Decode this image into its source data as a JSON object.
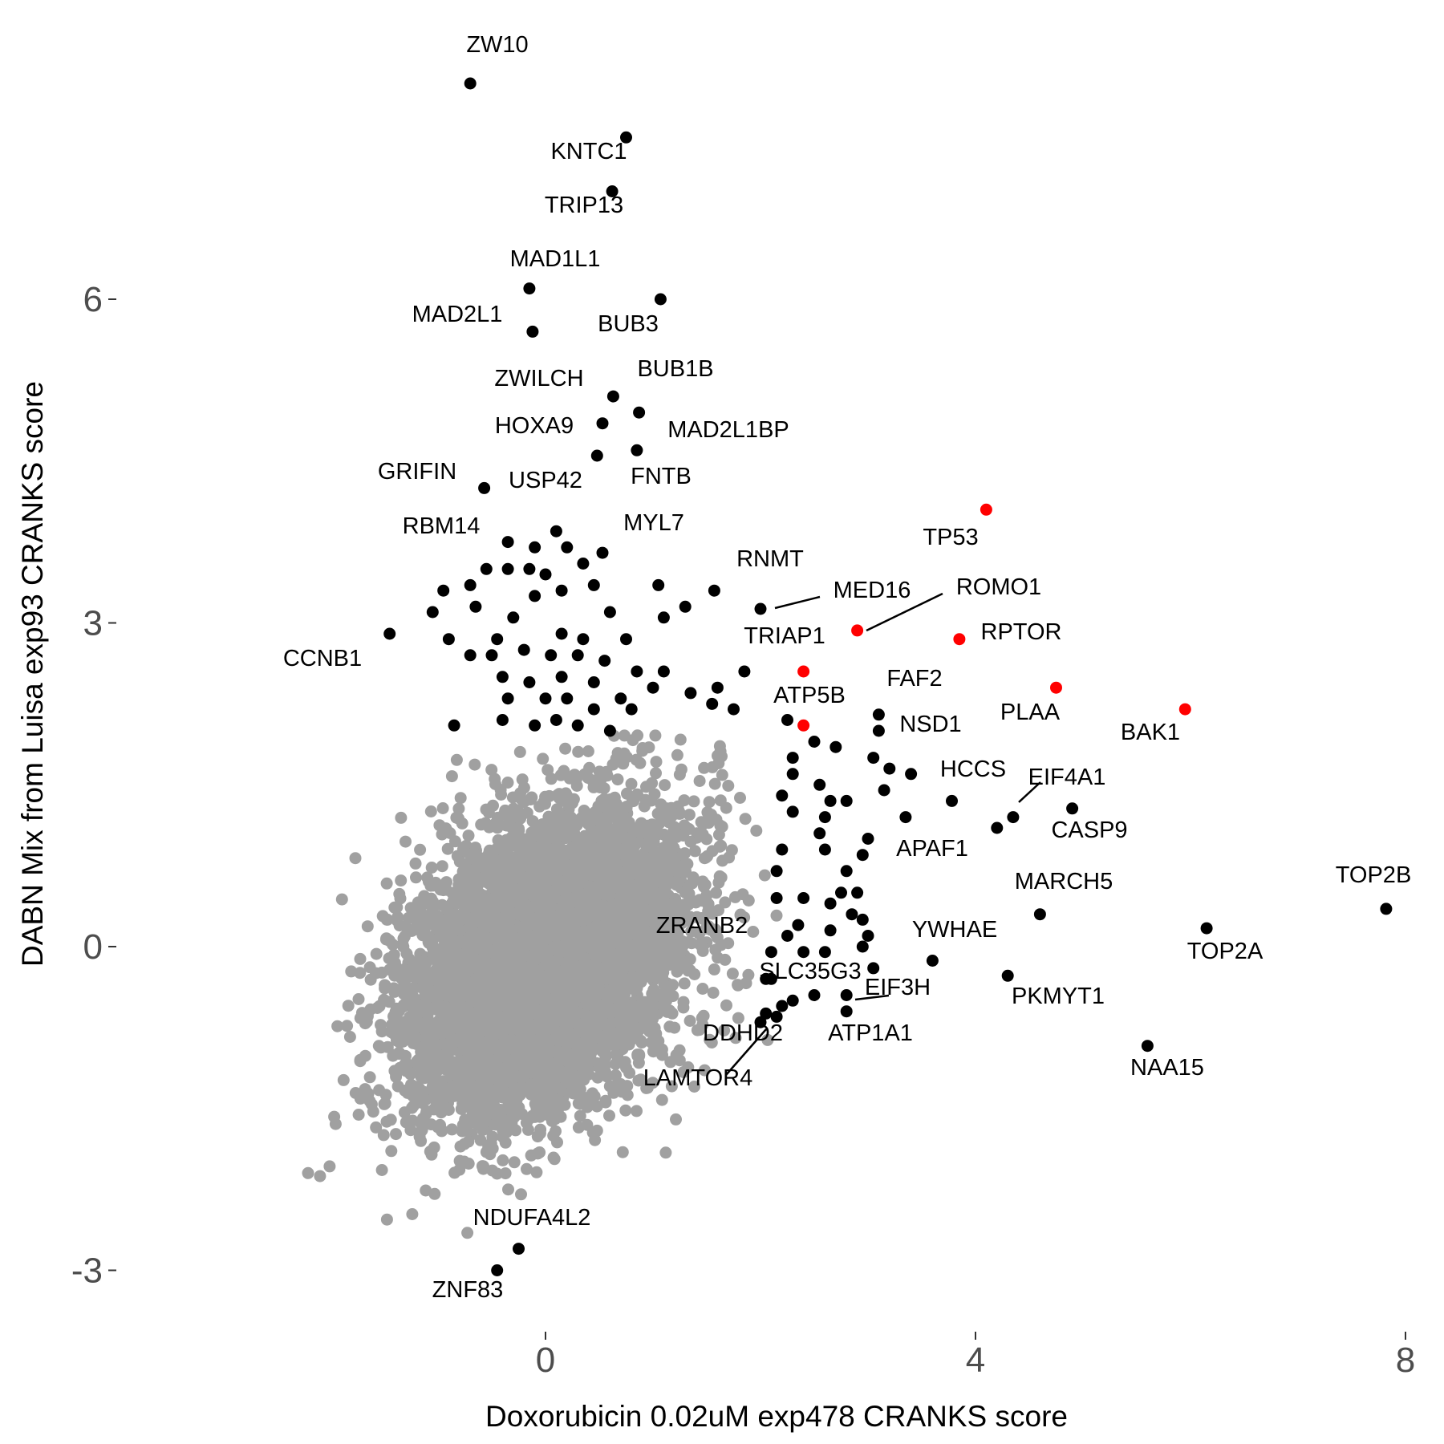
{
  "chart_data": {
    "type": "scatter",
    "title": "",
    "xlabel": "Doxorubicin 0.02uM exp478 CRANKS score",
    "ylabel": "DABN Mix from Luisa exp93 CRANKS score",
    "xlim": [
      -3.5,
      8.1
    ],
    "ylim": [
      -3.5,
      8.2
    ],
    "x_ticks": [
      0,
      4,
      8
    ],
    "x_tick_labels": [
      "0",
      "4",
      "8"
    ],
    "y_ticks": [
      -3,
      0,
      3,
      6
    ],
    "y_tick_labels": [
      "-3",
      "0",
      "3",
      "6"
    ],
    "grid": false,
    "legend": "none",
    "colors": {
      "background": "#a0a0a0",
      "significant": "#000000",
      "highlight": "#ff0000"
    },
    "background_cloud": {
      "description_count": 6000,
      "x_center": 0.0,
      "y_center": -0.15,
      "x_sd": 0.65,
      "y_sd": 0.7,
      "correlation": 0.35
    },
    "labeled_points": [
      {
        "gene": "ZW10",
        "x": -0.7,
        "y": 8.0,
        "group": "significant"
      },
      {
        "gene": "KNTC1",
        "x": 0.75,
        "y": 7.5,
        "group": "significant"
      },
      {
        "gene": "TRIP13",
        "x": 0.62,
        "y": 7.0,
        "group": "significant"
      },
      {
        "gene": "MAD1L1",
        "x": -0.15,
        "y": 6.1,
        "group": "significant"
      },
      {
        "gene": "BUB3",
        "x": 1.07,
        "y": 6.0,
        "group": "significant"
      },
      {
        "gene": "MAD2L1",
        "x": -0.12,
        "y": 5.7,
        "group": "significant"
      },
      {
        "gene": "BUB1B",
        "x": 0.63,
        "y": 5.1,
        "group": "significant"
      },
      {
        "gene": "ZWILCH",
        "x": 0.53,
        "y": 4.85,
        "group": "significant"
      },
      {
        "gene": "MAD2L1BP",
        "x": 0.87,
        "y": 4.95,
        "group": "significant"
      },
      {
        "gene": "HOXA9",
        "x": 0.48,
        "y": 4.55,
        "group": "significant"
      },
      {
        "gene": "FNTB",
        "x": 0.85,
        "y": 4.6,
        "group": "significant"
      },
      {
        "gene": "USP42",
        "x": -0.57,
        "y": 4.25,
        "group": "significant"
      },
      {
        "gene": "MYL7",
        "x": 0.53,
        "y": 3.65,
        "group": "significant"
      },
      {
        "gene": "RBM14",
        "x": -0.35,
        "y": 3.75,
        "group": "significant"
      },
      {
        "gene": "RNMT",
        "x": 1.57,
        "y": 3.3,
        "group": "significant"
      },
      {
        "gene": "MED16",
        "x": 2.0,
        "y": 3.13,
        "group": "significant"
      },
      {
        "gene": "ROMO1",
        "x": 2.9,
        "y": 2.93,
        "group": "highlight"
      },
      {
        "gene": "TP53",
        "x": 4.1,
        "y": 4.05,
        "group": "highlight"
      },
      {
        "gene": "RPTOR",
        "x": 3.85,
        "y": 2.85,
        "group": "highlight"
      },
      {
        "gene": "CCNB1",
        "x": -1.45,
        "y": 2.9,
        "group": "significant"
      },
      {
        "gene": "TRIAP1",
        "x": 2.4,
        "y": 2.55,
        "group": "highlight"
      },
      {
        "gene": "ATP5B",
        "x": 2.4,
        "y": 2.05,
        "group": "highlight"
      },
      {
        "gene": "PLAA",
        "x": 4.75,
        "y": 2.4,
        "group": "highlight"
      },
      {
        "gene": "BAK1",
        "x": 5.95,
        "y": 2.2,
        "group": "highlight"
      },
      {
        "gene": "FAF2",
        "x": 3.1,
        "y": 2.15,
        "group": "significant"
      },
      {
        "gene": "NSD1",
        "x": 3.1,
        "y": 2.0,
        "group": "significant"
      },
      {
        "gene": "HCCS",
        "x": 3.78,
        "y": 1.35,
        "group": "significant"
      },
      {
        "gene": "EIF4A1",
        "x": 4.35,
        "y": 1.2,
        "group": "significant"
      },
      {
        "gene": "CASP9",
        "x": 4.9,
        "y": 1.28,
        "group": "significant"
      },
      {
        "gene": "APAF1",
        "x": 4.2,
        "y": 1.1,
        "group": "significant"
      },
      {
        "gene": "TOP2B",
        "x": 7.82,
        "y": 0.35,
        "group": "significant"
      },
      {
        "gene": "MARCH5",
        "x": 4.6,
        "y": 0.3,
        "group": "significant"
      },
      {
        "gene": "TOP2A",
        "x": 6.15,
        "y": 0.17,
        "group": "significant"
      },
      {
        "gene": "YWHAE",
        "x": 3.6,
        "y": -0.13,
        "group": "significant"
      },
      {
        "gene": "ZRANB2",
        "x": 2.1,
        "y": -0.05,
        "group": "significant"
      },
      {
        "gene": "SLC35G3",
        "x": 2.1,
        "y": -0.3,
        "group": "significant"
      },
      {
        "gene": "EIF3H",
        "x": 2.8,
        "y": -0.45,
        "group": "significant"
      },
      {
        "gene": "PKMYT1",
        "x": 4.3,
        "y": -0.27,
        "group": "significant"
      },
      {
        "gene": "ATP1A1",
        "x": 2.8,
        "y": -0.6,
        "group": "significant"
      },
      {
        "gene": "DDHD2",
        "x": 2.05,
        "y": -0.62,
        "group": "significant"
      },
      {
        "gene": "LAMTOR4",
        "x": 2.2,
        "y": -0.55,
        "group": "significant"
      },
      {
        "gene": "NAA15",
        "x": 5.6,
        "y": -0.92,
        "group": "significant"
      },
      {
        "gene": "NDUFA4L2",
        "x": -0.25,
        "y": -2.8,
        "group": "significant"
      },
      {
        "gene": "ZNF83",
        "x": -0.45,
        "y": -3.0,
        "group": "significant"
      }
    ],
    "unlabeled_significant_points": [
      [
        -0.1,
        3.7
      ],
      [
        0.1,
        3.85
      ],
      [
        0.2,
        3.7
      ],
      [
        0.35,
        3.55
      ],
      [
        -0.55,
        3.5
      ],
      [
        -0.35,
        3.5
      ],
      [
        -0.15,
        3.5
      ],
      [
        0.0,
        3.45
      ],
      [
        -0.95,
        3.3
      ],
      [
        -0.7,
        3.35
      ],
      [
        -0.1,
        3.25
      ],
      [
        0.15,
        3.3
      ],
      [
        0.45,
        3.35
      ],
      [
        1.05,
        3.35
      ],
      [
        1.3,
        3.15
      ],
      [
        -1.05,
        3.1
      ],
      [
        -0.65,
        3.15
      ],
      [
        -0.3,
        3.05
      ],
      [
        0.6,
        3.1
      ],
      [
        1.1,
        3.05
      ],
      [
        -0.9,
        2.85
      ],
      [
        -0.45,
        2.85
      ],
      [
        0.15,
        2.9
      ],
      [
        0.35,
        2.85
      ],
      [
        0.75,
        2.85
      ],
      [
        -0.7,
        2.7
      ],
      [
        -0.5,
        2.7
      ],
      [
        -0.2,
        2.75
      ],
      [
        0.05,
        2.7
      ],
      [
        0.3,
        2.7
      ],
      [
        0.55,
        2.65
      ],
      [
        0.85,
        2.55
      ],
      [
        1.1,
        2.55
      ],
      [
        -0.4,
        2.5
      ],
      [
        -0.15,
        2.45
      ],
      [
        0.15,
        2.5
      ],
      [
        0.45,
        2.45
      ],
      [
        0.7,
        2.3
      ],
      [
        1.0,
        2.4
      ],
      [
        1.35,
        2.35
      ],
      [
        1.6,
        2.4
      ],
      [
        1.85,
        2.55
      ],
      [
        -0.35,
        2.3
      ],
      [
        0.0,
        2.3
      ],
      [
        0.2,
        2.3
      ],
      [
        0.45,
        2.2
      ],
      [
        0.8,
        2.2
      ],
      [
        1.55,
        2.25
      ],
      [
        1.75,
        2.2
      ],
      [
        -0.85,
        2.05
      ],
      [
        -0.4,
        2.1
      ],
      [
        -0.1,
        2.05
      ],
      [
        0.1,
        2.1
      ],
      [
        0.3,
        2.05
      ],
      [
        0.6,
        2.0
      ],
      [
        2.25,
        2.1
      ],
      [
        2.5,
        1.9
      ],
      [
        2.7,
        1.85
      ],
      [
        2.3,
        1.75
      ],
      [
        3.05,
        1.75
      ],
      [
        3.2,
        1.65
      ],
      [
        2.3,
        1.6
      ],
      [
        2.55,
        1.5
      ],
      [
        3.4,
        1.6
      ],
      [
        2.2,
        1.4
      ],
      [
        2.65,
        1.35
      ],
      [
        2.8,
        1.35
      ],
      [
        3.15,
        1.45
      ],
      [
        2.3,
        1.25
      ],
      [
        2.6,
        1.2
      ],
      [
        3.35,
        1.2
      ],
      [
        2.55,
        1.05
      ],
      [
        3.0,
        1.0
      ],
      [
        2.2,
        0.9
      ],
      [
        2.6,
        0.9
      ],
      [
        2.95,
        0.85
      ],
      [
        2.15,
        0.7
      ],
      [
        2.8,
        0.7
      ],
      [
        2.15,
        0.45
      ],
      [
        2.4,
        0.45
      ],
      [
        2.65,
        0.4
      ],
      [
        2.75,
        0.5
      ],
      [
        2.9,
        0.5
      ],
      [
        2.35,
        0.2
      ],
      [
        2.85,
        0.3
      ],
      [
        2.95,
        0.25
      ],
      [
        2.25,
        0.1
      ],
      [
        2.65,
        0.15
      ],
      [
        3.0,
        0.1
      ],
      [
        2.95,
        0.0
      ],
      [
        2.4,
        -0.05
      ],
      [
        2.6,
        -0.05
      ],
      [
        3.05,
        -0.2
      ],
      [
        2.05,
        -0.3
      ],
      [
        2.3,
        -0.5
      ],
      [
        2.5,
        -0.45
      ],
      [
        2.0,
        -0.7
      ],
      [
        2.15,
        -0.65
      ]
    ]
  },
  "labels": {
    "ZW10": "ZW10",
    "KNTC1": "KNTC1",
    "TRIP13": "TRIP13",
    "MAD1L1": "MAD1L1",
    "BUB3": "BUB3",
    "MAD2L1": "MAD2L1",
    "BUB1B": "BUB1B",
    "ZWILCH": "ZWILCH",
    "MAD2L1BP": "MAD2L1BP",
    "HOXA9": "HOXA9",
    "FNTB": "FNTB",
    "GRIFIN": "GRIFIN",
    "USP42": "USP42",
    "MYL7": "MYL7",
    "RBM14": "RBM14",
    "RNMT": "RNMT",
    "MED16": "MED16",
    "ROMO1": "ROMO1",
    "TP53": "TP53",
    "RPTOR": "RPTOR",
    "CCNB1": "CCNB1",
    "TRIAP1": "TRIAP1",
    "ATP5B": "ATP5B",
    "PLAA": "PLAA",
    "BAK1": "BAK1",
    "FAF2": "FAF2",
    "NSD1": "NSD1",
    "HCCS": "HCCS",
    "EIF4A1": "EIF4A1",
    "CASP9": "CASP9",
    "APAF1": "APAF1",
    "TOP2B": "TOP2B",
    "MARCH5": "MARCH5",
    "TOP2A": "TOP2A",
    "YWHAE": "YWHAE",
    "ZRANB2": "ZRANB2",
    "SLC35G3": "SLC35G3",
    "EIF3H": "EIF3H",
    "PKMYT1": "PKMYT1",
    "ATP1A1": "ATP1A1",
    "DDHD2": "DDHD2",
    "LAMTOR4": "LAMTOR4",
    "NAA15": "NAA15",
    "NDUFA4L2": "NDUFA4L2",
    "ZNF83": "ZNF83"
  }
}
